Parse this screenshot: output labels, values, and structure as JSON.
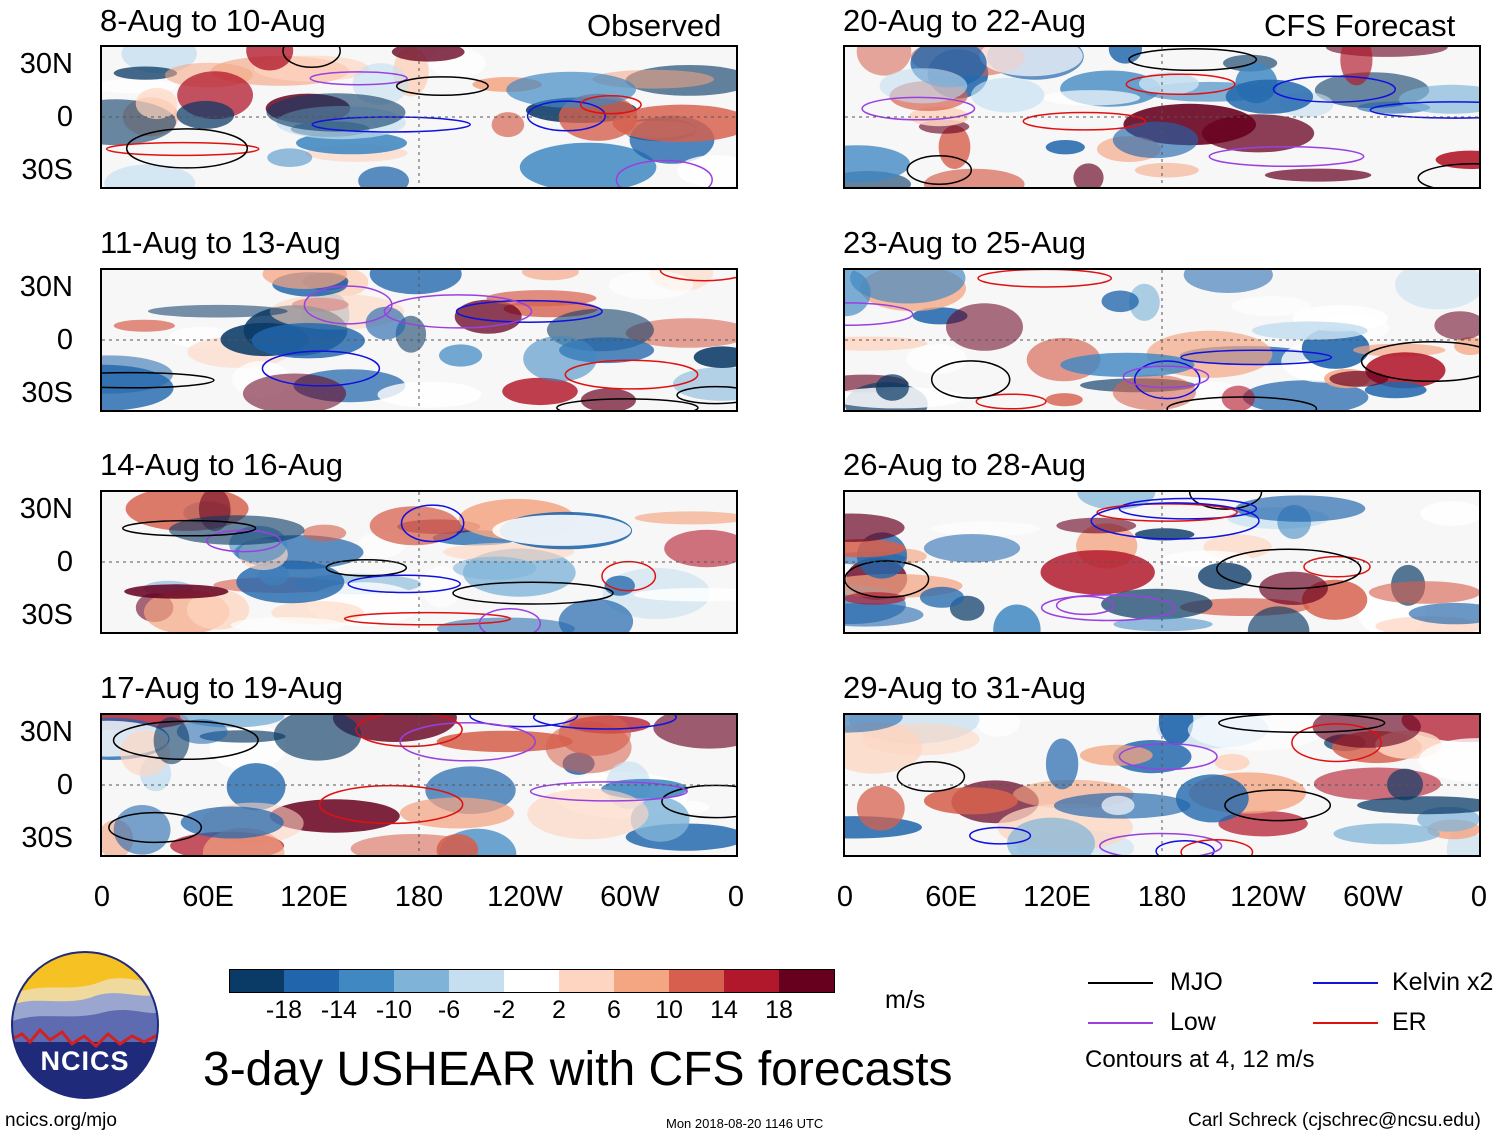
{
  "panels_left": [
    {
      "title": "8-Aug to 10-Aug",
      "label": "Observed"
    },
    {
      "title": "11-Aug to 13-Aug",
      "label": ""
    },
    {
      "title": "14-Aug to 16-Aug",
      "label": ""
    },
    {
      "title": "17-Aug to 19-Aug",
      "label": ""
    }
  ],
  "panels_right": [
    {
      "title": "20-Aug to 22-Aug",
      "label": "CFS Forecast"
    },
    {
      "title": "23-Aug to 25-Aug",
      "label": ""
    },
    {
      "title": "26-Aug to 28-Aug",
      "label": ""
    },
    {
      "title": "29-Aug to 31-Aug",
      "label": ""
    }
  ],
  "lat_ticks": [
    "30N",
    "0",
    "30S"
  ],
  "lon_ticks": [
    "0",
    "60E",
    "120E",
    "180",
    "120W",
    "60W",
    "0"
  ],
  "colorbar": {
    "ticks": [
      "-18",
      "-14",
      "-10",
      "-6",
      "-2",
      "2",
      "6",
      "10",
      "14",
      "18"
    ],
    "colors": [
      "#0a3a66",
      "#2166ac",
      "#3f88c2",
      "#7fb4d8",
      "#c5dff0",
      "#ffffff",
      "#fdd5c0",
      "#f4a582",
      "#d6604d",
      "#b2182b",
      "#67001f"
    ],
    "units": "m/s"
  },
  "legend": {
    "items": [
      {
        "name": "MJO",
        "color": "#000000"
      },
      {
        "name": "Kelvin x2",
        "color": "#1010e0"
      },
      {
        "name": "Low",
        "color": "#9a40e0"
      },
      {
        "name": "ER",
        "color": "#e01010"
      }
    ],
    "contours_note": "Contours at 4, 12 m/s"
  },
  "logo_text": "NCICS",
  "main_title": "3-day USHEAR with CFS forecasts",
  "footer": {
    "url": "ncics.org/mjo",
    "timestamp": "Mon 2018-08-20 1146 UTC",
    "credit": "Carl Schreck (cjschrec@ncsu.edu)"
  }
}
